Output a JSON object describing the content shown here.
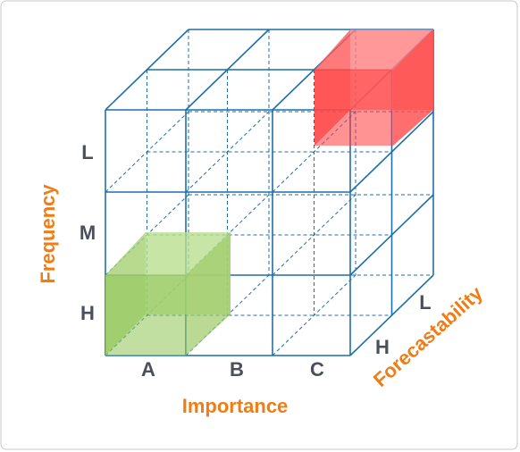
{
  "frequency_labels": [
    "L",
    "M",
    "H"
  ],
  "importance_labels": [
    "A",
    "B",
    "C"
  ],
  "forecastability_labels": [
    "L",
    "H"
  ],
  "axes": {
    "frequency": "Frequency",
    "importance": "Importance",
    "forecastability": "Forecastability"
  }
}
